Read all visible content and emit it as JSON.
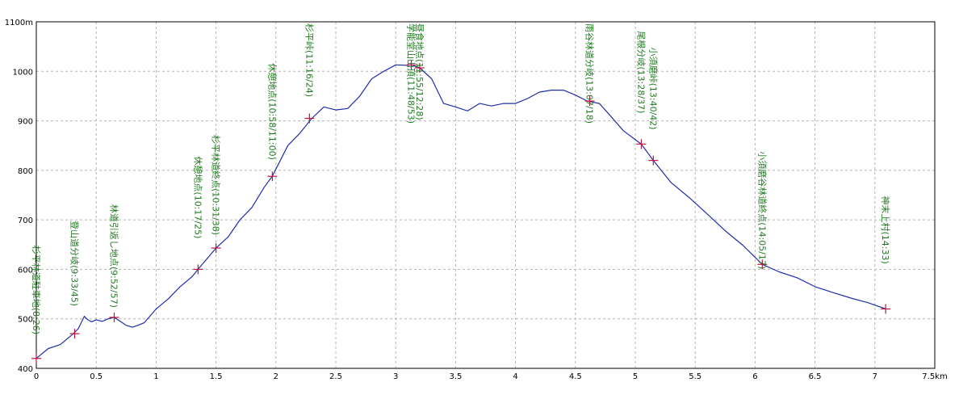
{
  "chart_data": {
    "type": "line",
    "title": "",
    "xlabel": "",
    "ylabel": "",
    "xlim": [
      0,
      7.5
    ],
    "ylim": [
      400,
      1100
    ],
    "grid": true,
    "x_ticks": [
      {
        "value": 0,
        "label": "0"
      },
      {
        "value": 0.5,
        "label": "0.5"
      },
      {
        "value": 1,
        "label": "1"
      },
      {
        "value": 1.5,
        "label": "1.5"
      },
      {
        "value": 2,
        "label": "2"
      },
      {
        "value": 2.5,
        "label": "2.5"
      },
      {
        "value": 3,
        "label": "3"
      },
      {
        "value": 3.5,
        "label": "3.5"
      },
      {
        "value": 4,
        "label": "4"
      },
      {
        "value": 4.5,
        "label": "4.5"
      },
      {
        "value": 5,
        "label": "5"
      },
      {
        "value": 5.5,
        "label": "5.5"
      },
      {
        "value": 6,
        "label": "6"
      },
      {
        "value": 6.5,
        "label": "6.5"
      },
      {
        "value": 7,
        "label": "7"
      },
      {
        "value": 7.5,
        "label": "7.5km"
      }
    ],
    "y_ticks": [
      {
        "value": 400,
        "label": "400"
      },
      {
        "value": 500,
        "label": "500"
      },
      {
        "value": 600,
        "label": "600"
      },
      {
        "value": 700,
        "label": "700"
      },
      {
        "value": 800,
        "label": "800"
      },
      {
        "value": 900,
        "label": "900"
      },
      {
        "value": 1000,
        "label": "1000"
      },
      {
        "value": 1100,
        "label": "1100m"
      }
    ],
    "colors": {
      "profile": "#1f2fa8",
      "marker": "#c0143c",
      "label": "#1f7a1f",
      "grid": "#b4b4b4",
      "axis": "#000000"
    },
    "profile": {
      "x": [
        0,
        0.1,
        0.2,
        0.3,
        0.35,
        0.4,
        0.43,
        0.46,
        0.5,
        0.55,
        0.6,
        0.65,
        0.7,
        0.75,
        0.8,
        0.85,
        0.9,
        1.0,
        1.1,
        1.2,
        1.3,
        1.35,
        1.5,
        1.6,
        1.7,
        1.8,
        1.9,
        1.97,
        2.1,
        2.2,
        2.3,
        2.4,
        2.5,
        2.6,
        2.7,
        2.8,
        2.9,
        3.0,
        3.1,
        3.13,
        3.2,
        3.3,
        3.4,
        3.5,
        3.6,
        3.7,
        3.8,
        3.9,
        4.0,
        4.1,
        4.2,
        4.3,
        4.4,
        4.5,
        4.6,
        4.7,
        4.8,
        4.9,
        5.05,
        5.15,
        5.3,
        5.45,
        5.6,
        5.75,
        5.9,
        6.06,
        6.2,
        6.35,
        6.5,
        6.65,
        6.8,
        6.95,
        7.09
      ],
      "y": [
        420,
        440,
        448,
        468,
        480,
        505,
        498,
        494,
        498,
        495,
        500,
        503,
        495,
        487,
        483,
        487,
        492,
        520,
        540,
        565,
        585,
        600,
        643,
        665,
        700,
        725,
        765,
        788,
        850,
        875,
        905,
        928,
        922,
        925,
        950,
        985,
        1000,
        1013,
        1012,
        1013,
        1007,
        985,
        935,
        928,
        920,
        935,
        930,
        935,
        935,
        945,
        958,
        962,
        962,
        952,
        940,
        935,
        908,
        880,
        853,
        820,
        775,
        745,
        712,
        678,
        648,
        610,
        595,
        583,
        565,
        553,
        542,
        532,
        520
      ]
    },
    "waypoints": [
      {
        "x": 0.0,
        "y": 420,
        "label": "杉平林道駐車地(8:26)"
      },
      {
        "x": 0.32,
        "y": 470,
        "label": "登山道分岐(9:33/45)"
      },
      {
        "x": 0.65,
        "y": 503,
        "label": "林道引返し地点(9:52/57)"
      },
      {
        "x": 1.35,
        "y": 600,
        "label": "休憩地点(10:17/25)"
      },
      {
        "x": 1.5,
        "y": 643,
        "label": "杉平林道終点(10:31/38)"
      },
      {
        "x": 1.97,
        "y": 788,
        "label": "休憩地点(10:58/11:00)"
      },
      {
        "x": 2.28,
        "y": 905,
        "label": "杉平峠(11:16/24)"
      },
      {
        "x": 3.13,
        "y": 1013,
        "label": "学能堂山山頂(11:48/53)"
      },
      {
        "x": 3.2,
        "y": 1007,
        "label": "昼食地点(11:55/12:28)"
      },
      {
        "x": 4.62,
        "y": 940,
        "label": "雨谷林道分岐(13:07/18)"
      },
      {
        "x": 5.05,
        "y": 853,
        "label": "尾根分岐(13:28/37)"
      },
      {
        "x": 5.15,
        "y": 820,
        "label": "小須磨峠(13:40/42)"
      },
      {
        "x": 6.06,
        "y": 610,
        "label": "小須磨谷林道終点(14:05/17)"
      },
      {
        "x": 7.09,
        "y": 520,
        "label": "神末上村(14:33)"
      }
    ]
  }
}
